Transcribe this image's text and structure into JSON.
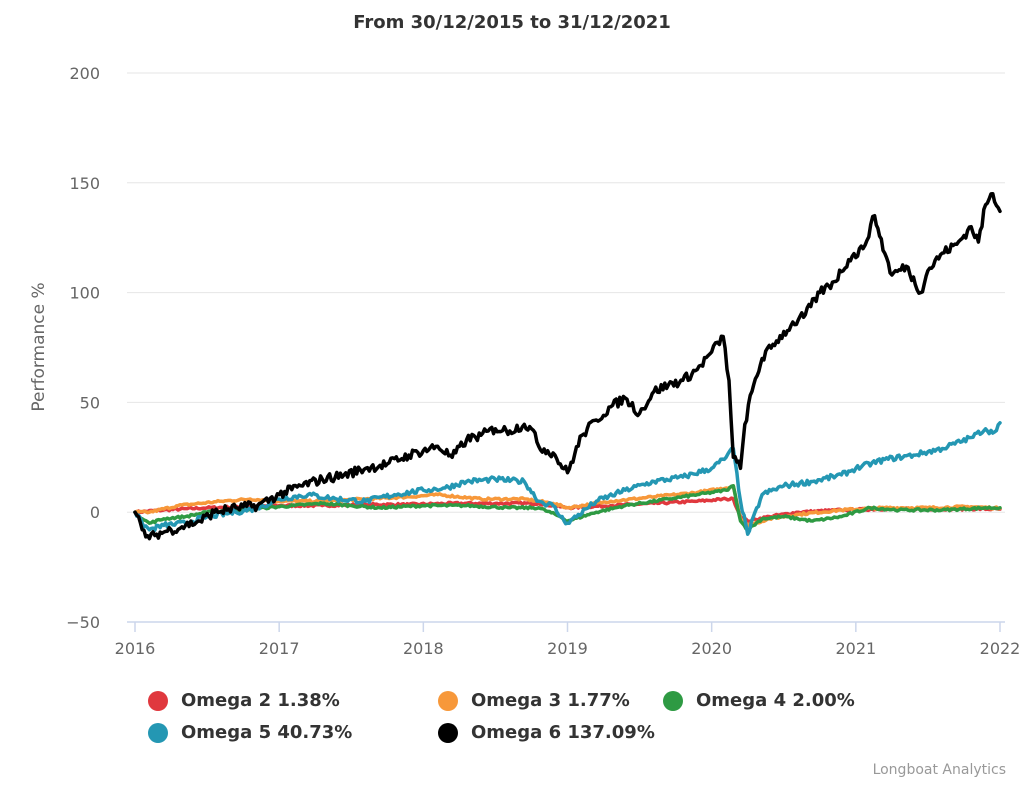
{
  "chart_data": {
    "type": "line",
    "title": "From 30/12/2015 to 31/12/2021",
    "xlabel": "",
    "ylabel": "Performance %",
    "ylim": [
      -50,
      200
    ],
    "xlim": [
      2016,
      2022
    ],
    "yticks": [
      "200",
      "150",
      "100",
      "50",
      "0",
      "−50"
    ],
    "ytick_values": [
      200,
      150,
      100,
      50,
      0,
      -50
    ],
    "xticks": [
      "2016",
      "2017",
      "2018",
      "2019",
      "2020",
      "2021",
      "2022"
    ],
    "xtick_values": [
      2016,
      2017,
      2018,
      2019,
      2020,
      2021,
      2022
    ],
    "grid": true,
    "legend_position": "bottom",
    "series": [
      {
        "name": "Omega 2",
        "legend_label": "Omega 2 1.38%",
        "final_value": 1.38,
        "color": "#e0383e",
        "x": [
          2016.0,
          2016.2,
          2016.5,
          2016.8,
          2017.0,
          2017.3,
          2017.6,
          2017.9,
          2018.2,
          2018.5,
          2018.8,
          2019.0,
          2019.3,
          2019.6,
          2019.9,
          2020.1,
          2020.15,
          2020.2,
          2020.25,
          2020.4,
          2020.6,
          2020.9,
          2021.2,
          2021.5,
          2021.8,
          2022.0
        ],
        "values": [
          0,
          1,
          2,
          2.5,
          3,
          3,
          3.5,
          3.5,
          4,
          4,
          4,
          2,
          3,
          4,
          5,
          6,
          6,
          -2,
          -4,
          -2,
          0,
          1,
          1.5,
          1.5,
          1.5,
          1.4
        ]
      },
      {
        "name": "Omega 3",
        "legend_label": "Omega 3 1.77%",
        "final_value": 1.77,
        "color": "#f7983a",
        "x": [
          2016.0,
          2016.1,
          2016.3,
          2016.6,
          2016.8,
          2017.0,
          2017.3,
          2017.6,
          2017.9,
          2018.1,
          2018.4,
          2018.7,
          2018.9,
          2019.0,
          2019.3,
          2019.6,
          2019.9,
          2020.1,
          2020.15,
          2020.2,
          2020.25,
          2020.4,
          2020.6,
          2020.9,
          2021.2,
          2021.5,
          2021.8,
          2022.0
        ],
        "values": [
          0,
          0,
          3,
          5,
          6,
          5,
          5,
          6,
          7,
          8,
          6,
          6,
          4,
          2,
          5,
          7,
          9,
          11,
          12,
          -3,
          -6,
          -3,
          -1,
          1,
          2,
          2,
          2.5,
          1.8
        ]
      },
      {
        "name": "Omega 4",
        "legend_label": "Omega 4 2.00%",
        "final_value": 2.0,
        "color": "#2e9a43",
        "x": [
          2016.0,
          2016.05,
          2016.1,
          2016.2,
          2016.35,
          2016.5,
          2016.7,
          2016.9,
          2017.1,
          2017.3,
          2017.5,
          2017.7,
          2018.0,
          2018.3,
          2018.6,
          2018.8,
          2018.95,
          2019.0,
          2019.2,
          2019.4,
          2019.7,
          2019.9,
          2020.1,
          2020.15,
          2020.2,
          2020.25,
          2020.35,
          2020.5,
          2020.7,
          2020.9,
          2021.1,
          2021.3,
          2021.6,
          2021.9,
          2022.0
        ],
        "values": [
          0,
          -3,
          -5,
          -3,
          -2,
          0,
          1,
          2,
          3,
          4,
          3,
          2,
          3,
          3,
          2,
          2,
          -2,
          -4,
          0,
          3,
          6,
          8,
          10,
          12,
          -4,
          -8,
          -3,
          -2,
          -4,
          -2,
          2,
          1,
          1,
          2,
          2
        ]
      },
      {
        "name": "Omega 5",
        "legend_label": "Omega 5 40.73%",
        "final_value": 40.73,
        "color": "#2497b3",
        "x": [
          2016.0,
          2016.05,
          2016.1,
          2016.2,
          2016.35,
          2016.5,
          2016.7,
          2016.85,
          2017.0,
          2017.2,
          2017.4,
          2017.6,
          2017.8,
          2018.0,
          2018.15,
          2018.3,
          2018.5,
          2018.7,
          2018.8,
          2018.9,
          2018.95,
          2019.0,
          2019.2,
          2019.4,
          2019.6,
          2019.8,
          2020.0,
          2020.1,
          2020.15,
          2020.2,
          2020.25,
          2020.35,
          2020.5,
          2020.7,
          2020.9,
          2021.0,
          2021.2,
          2021.4,
          2021.6,
          2021.8,
          2021.9,
          2021.95,
          2022.0
        ],
        "values": [
          0,
          -5,
          -8,
          -6,
          -5,
          -2,
          0,
          2,
          6,
          8,
          6,
          5,
          8,
          10,
          11,
          14,
          15,
          14,
          5,
          3,
          -2,
          -5,
          5,
          10,
          14,
          16,
          20,
          25,
          29,
          5,
          -10,
          8,
          12,
          14,
          17,
          20,
          24,
          26,
          29,
          34,
          38,
          36,
          40.7
        ]
      },
      {
        "name": "Omega 6",
        "legend_label": "Omega 6 137.09%",
        "final_value": 137.09,
        "color": "#000000",
        "x": [
          2016.0,
          2016.05,
          2016.1,
          2016.15,
          2016.25,
          2016.35,
          2016.45,
          2016.55,
          2016.7,
          2016.85,
          2017.0,
          2017.15,
          2017.3,
          2017.45,
          2017.6,
          2017.75,
          2017.9,
          2018.0,
          2018.1,
          2018.2,
          2018.3,
          2018.4,
          2018.5,
          2018.6,
          2018.7,
          2018.75,
          2018.8,
          2018.9,
          2018.95,
          2019.0,
          2019.1,
          2019.2,
          2019.3,
          2019.4,
          2019.5,
          2019.6,
          2019.7,
          2019.8,
          2019.9,
          2020.0,
          2020.08,
          2020.12,
          2020.15,
          2020.2,
          2020.23,
          2020.28,
          2020.35,
          2020.45,
          2020.55,
          2020.65,
          2020.75,
          2020.85,
          2020.95,
          2021.05,
          2021.13,
          2021.2,
          2021.25,
          2021.35,
          2021.45,
          2021.5,
          2021.6,
          2021.7,
          2021.8,
          2021.85,
          2021.9,
          2021.95,
          2022.0
        ],
        "values": [
          0,
          -8,
          -12,
          -10,
          -8,
          -6,
          -4,
          0,
          2,
          3,
          8,
          12,
          15,
          17,
          20,
          22,
          26,
          28,
          30,
          25,
          33,
          35,
          38,
          37,
          40,
          38,
          30,
          27,
          22,
          18,
          35,
          42,
          48,
          52,
          45,
          55,
          58,
          60,
          65,
          73,
          80,
          60,
          25,
          20,
          40,
          55,
          70,
          78,
          85,
          90,
          100,
          105,
          115,
          120,
          135,
          118,
          108,
          112,
          100,
          110,
          118,
          122,
          130,
          123,
          140,
          145,
          137
        ]
      }
    ]
  },
  "credits": "Longboat Analytics"
}
